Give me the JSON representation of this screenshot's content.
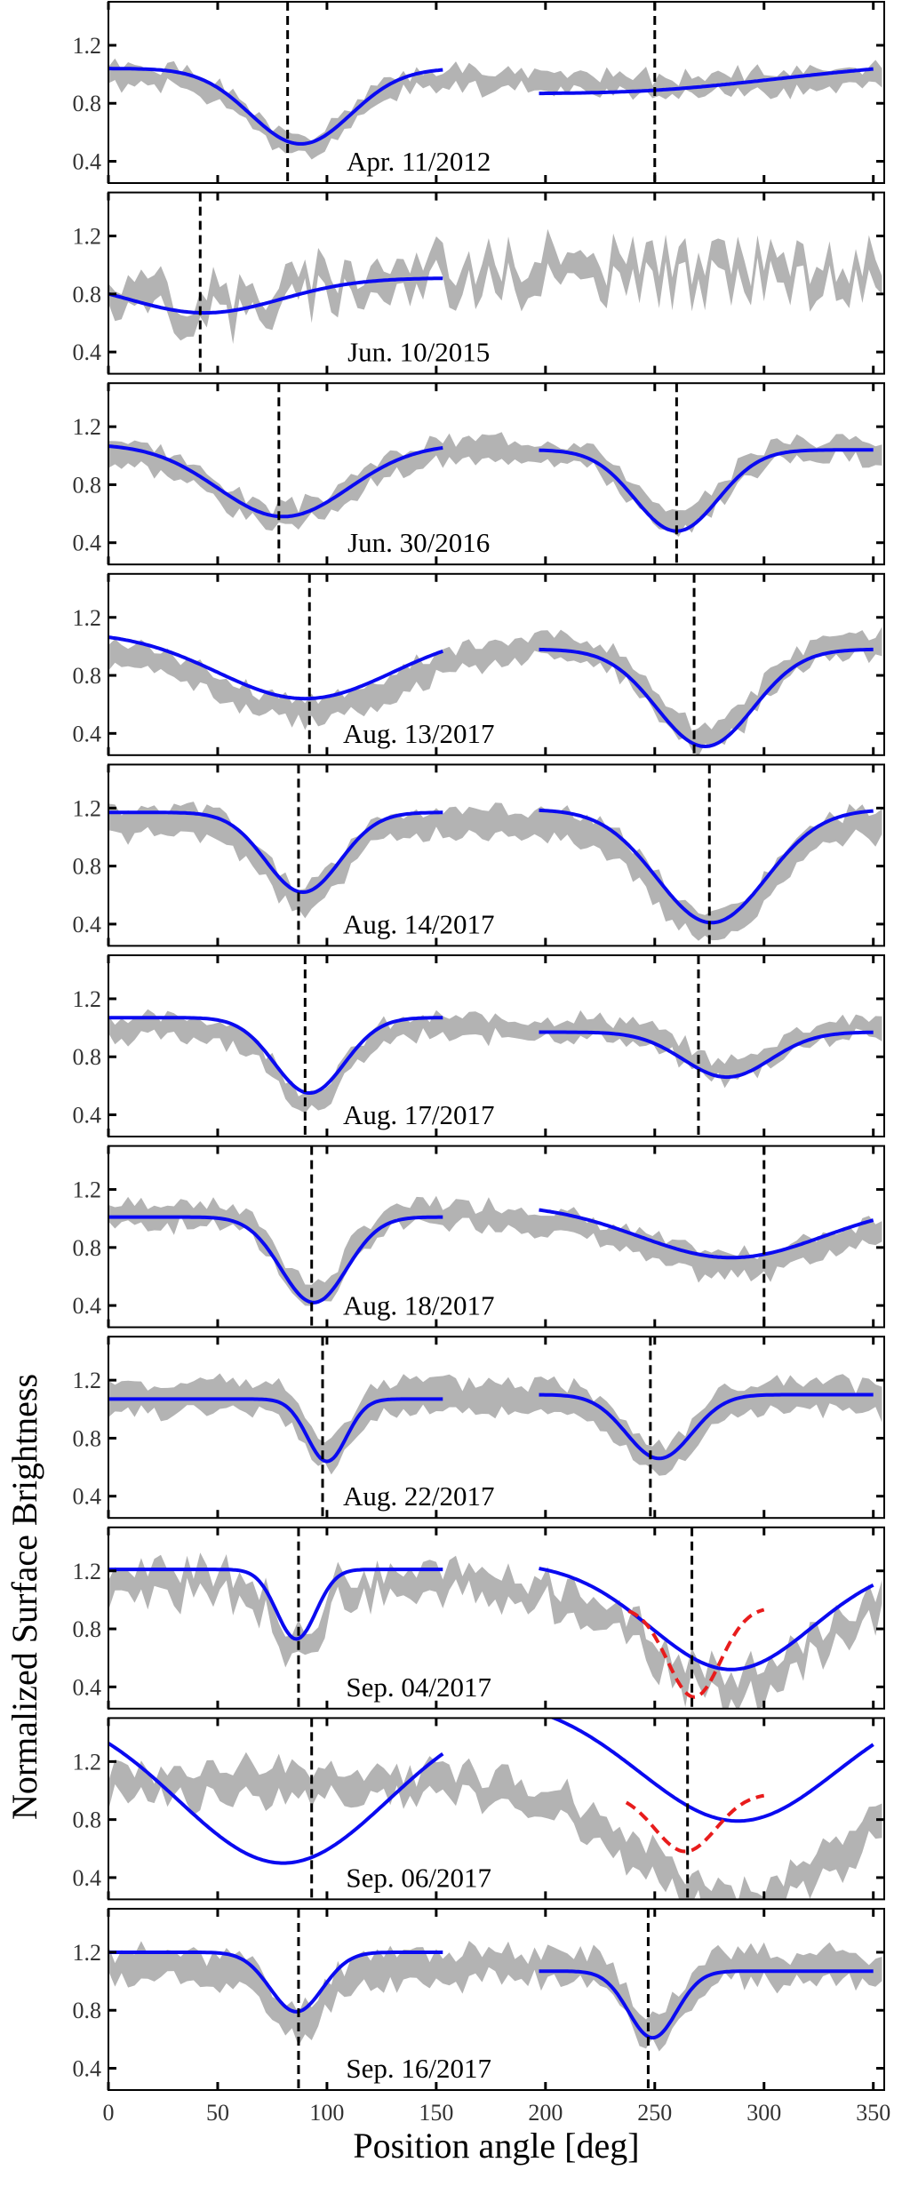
{
  "chart_data": {
    "type": "line",
    "xlabel": "Position angle [deg]",
    "ylabel": "Normalized Surface Brightness",
    "xlim": [
      0,
      355
    ],
    "ylim": [
      0.25,
      1.5
    ],
    "xticks": [
      0,
      50,
      100,
      150,
      200,
      250,
      300,
      350
    ],
    "yticks": [
      0.4,
      0.8,
      1.2
    ],
    "colors": {
      "fit": "#0a0af0",
      "band": "#b3b3b3",
      "alt_fit": "#e81c1c",
      "marker": "#000000"
    },
    "panels": [
      {
        "label": "Apr. 11/2012",
        "markers": [
          82,
          250
        ],
        "fits": [
          {
            "x0": 0,
            "x1": 153,
            "base": 1.04,
            "amp": 0.52,
            "center": 88,
            "sigma": 23,
            "tilt": 0,
            "ref": 88
          },
          {
            "x0": 197,
            "x1": 350,
            "base": 0.96,
            "amp": 0.07,
            "center": 250,
            "sigma": 55,
            "tilt": 0.0009,
            "ref": 250
          }
        ],
        "band_base": 0.99,
        "band_width": 0.14,
        "band_noise": 0.05,
        "seed": 1
      },
      {
        "label": "Jun. 10/2015",
        "markers": [
          42
        ],
        "fits": [
          {
            "x0": 0,
            "x1": 153,
            "base": 0.91,
            "amp": 0.24,
            "center": 44,
            "sigma": 35,
            "tilt": 0,
            "ref": 44
          }
        ],
        "band_base": 0.95,
        "band_width": 0.2,
        "band_noise": 0.18,
        "seed": 2
      },
      {
        "label": "Jun. 30/2016",
        "markers": [
          78,
          260
        ],
        "fits": [
          {
            "x0": 0,
            "x1": 153,
            "base": 1.08,
            "amp": 0.5,
            "center": 80,
            "sigma": 30,
            "tilt": 0,
            "ref": 80
          },
          {
            "x0": 197,
            "x1": 350,
            "base": 1.04,
            "amp": 0.56,
            "center": 260,
            "sigma": 19,
            "tilt": 0,
            "ref": 260
          }
        ],
        "band_base": 1.05,
        "band_width": 0.16,
        "band_noise": 0.05,
        "seed": 3
      },
      {
        "label": "Aug. 13/2017",
        "markers": [
          92,
          268
        ],
        "fits": [
          {
            "x0": 0,
            "x1": 153,
            "base": 1.1,
            "amp": 0.46,
            "center": 90,
            "sigma": 40,
            "tilt": 0,
            "ref": 90
          },
          {
            "x0": 197,
            "x1": 350,
            "base": 0.98,
            "amp": 0.67,
            "center": 273,
            "sigma": 22,
            "tilt": 0,
            "ref": 273
          }
        ],
        "band_base": 1.0,
        "band_width": 0.17,
        "band_noise": 0.05,
        "seed": 4
      },
      {
        "label": "Aug. 14/2017",
        "markers": [
          87,
          275
        ],
        "fits": [
          {
            "x0": 0,
            "x1": 153,
            "base": 1.17,
            "amp": 0.55,
            "center": 89,
            "sigma": 17,
            "tilt": 0,
            "ref": 89
          },
          {
            "x0": 197,
            "x1": 350,
            "base": 1.19,
            "amp": 0.78,
            "center": 276,
            "sigma": 25,
            "tilt": 0,
            "ref": 276
          }
        ],
        "band_base": 1.1,
        "band_width": 0.2,
        "band_noise": 0.05,
        "seed": 5
      },
      {
        "label": "Aug. 17/2017",
        "markers": [
          90,
          270
        ],
        "fits": [
          {
            "x0": 0,
            "x1": 153,
            "base": 1.07,
            "amp": 0.52,
            "center": 92,
            "sigma": 16,
            "tilt": 0,
            "ref": 92
          },
          {
            "x0": 197,
            "x1": 350,
            "base": 0.97,
            "amp": 0.31,
            "center": 283,
            "sigma": 20,
            "tilt": 0,
            "ref": 283
          }
        ],
        "band_base": 1.0,
        "band_width": 0.15,
        "band_noise": 0.05,
        "seed": 6
      },
      {
        "label": "Aug. 18/2017",
        "markers": [
          93,
          300
        ],
        "fits": [
          {
            "x0": 0,
            "x1": 153,
            "base": 1.01,
            "amp": 0.59,
            "center": 94,
            "sigma": 15,
            "tilt": 0,
            "ref": 94
          },
          {
            "x0": 197,
            "x1": 350,
            "base": 1.1,
            "amp": 0.37,
            "center": 285,
            "sigma": 42,
            "tilt": 0,
            "ref": 285
          }
        ],
        "band_base": 1.03,
        "band_width": 0.17,
        "band_noise": 0.05,
        "seed": 7
      },
      {
        "label": "Aug. 22/2017",
        "markers": [
          98,
          248
        ],
        "fits": [
          {
            "x0": 0,
            "x1": 153,
            "base": 1.07,
            "amp": 0.43,
            "center": 100,
            "sigma": 9,
            "tilt": 0,
            "ref": 100
          },
          {
            "x0": 197,
            "x1": 350,
            "base": 1.1,
            "amp": 0.44,
            "center": 252,
            "sigma": 15,
            "tilt": 0,
            "ref": 252
          }
        ],
        "band_base": 1.08,
        "band_width": 0.22,
        "band_noise": 0.05,
        "seed": 8
      },
      {
        "label": "Sep. 04/2017",
        "markers": [
          87,
          267
        ],
        "fits": [
          {
            "x0": 0,
            "x1": 153,
            "base": 1.21,
            "amp": 0.48,
            "center": 86,
            "sigma": 9,
            "tilt": 0,
            "ref": 86
          },
          {
            "x0": 197,
            "x1": 350,
            "base": 1.26,
            "amp": 0.74,
            "center": 285,
            "sigma": 37,
            "tilt": 0,
            "ref": 285
          }
        ],
        "alt_fits": [
          {
            "x0": 238,
            "x1": 300,
            "base": 0.95,
            "amp": 0.62,
            "center": 268,
            "sigma": 12,
            "tilt": 0,
            "ref": 268
          }
        ],
        "band_base": 1.1,
        "band_width": 0.2,
        "band_noise": 0.13,
        "seed": 9
      },
      {
        "label": "Sep. 06/2017",
        "markers": [
          93,
          265
        ],
        "fits": [
          {
            "x0": 0,
            "x1": 153,
            "base": 1.6,
            "amp": 1.1,
            "center": 80,
            "sigma": 48,
            "tilt": 0,
            "ref": 80
          },
          {
            "x0": 197,
            "x1": 350,
            "base": 1.65,
            "amp": 0.86,
            "center": 288,
            "sigma": 45,
            "tilt": 0,
            "ref": 288
          }
        ],
        "alt_fits": [
          {
            "x0": 237,
            "x1": 300,
            "base": 0.98,
            "amp": 0.4,
            "center": 264,
            "sigma": 14,
            "tilt": 0,
            "ref": 264
          }
        ],
        "band_base": 1.05,
        "band_width": 0.22,
        "band_noise": 0.1,
        "seed": 10
      },
      {
        "label": "Sep. 16/2017",
        "markers": [
          87,
          247
        ],
        "fits": [
          {
            "x0": 0,
            "x1": 153,
            "base": 1.2,
            "amp": 0.41,
            "center": 86,
            "sigma": 12,
            "tilt": 0,
            "ref": 86
          },
          {
            "x0": 197,
            "x1": 350,
            "base": 1.07,
            "amp": 0.46,
            "center": 249,
            "sigma": 11,
            "tilt": 0,
            "ref": 249
          }
        ],
        "band_base": 1.1,
        "band_width": 0.22,
        "band_noise": 0.07,
        "seed": 11
      }
    ]
  }
}
